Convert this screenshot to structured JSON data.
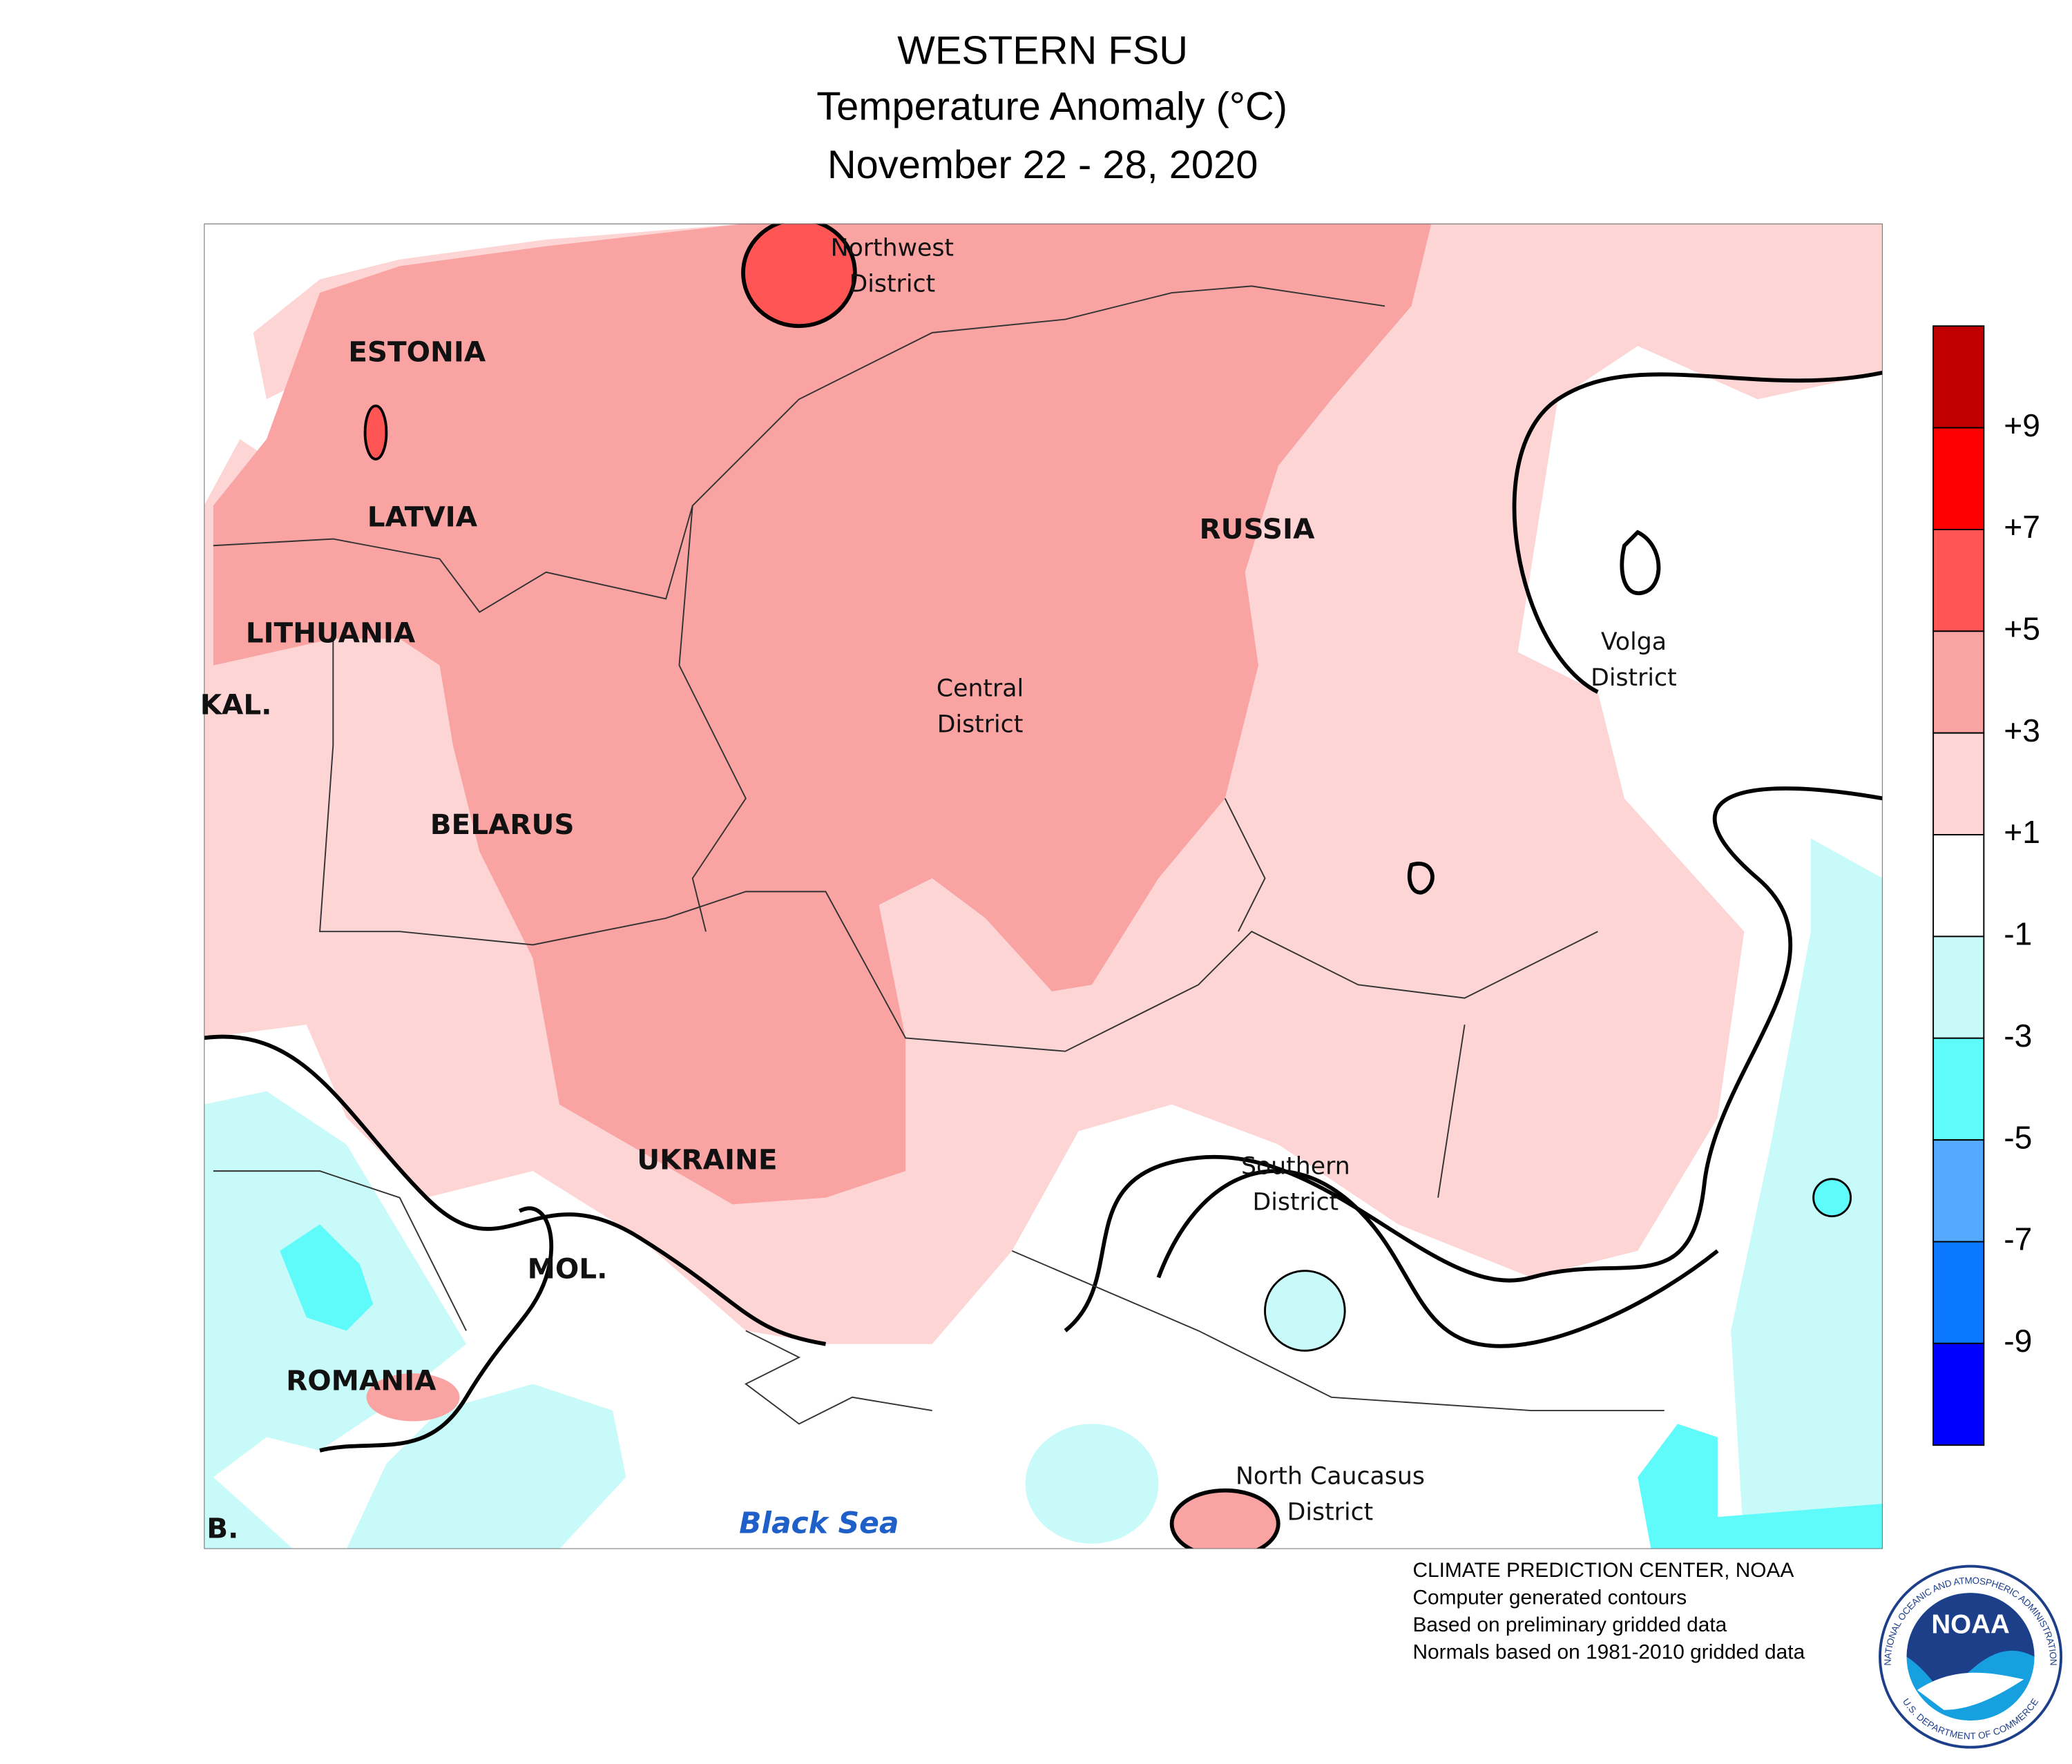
{
  "header": {
    "title": "WESTERN FSU",
    "subtitle": "Temperature Anomaly (°C)",
    "date": "November 22 - 28, 2020"
  },
  "map": {
    "labels": [
      [
        "ESTONIA"
      ],
      [
        "LATVIA"
      ],
      [
        "LITHUANIA"
      ],
      [
        "KAL."
      ],
      [
        "BELARUS"
      ],
      [
        "UKRAINE"
      ],
      [
        "MOL."
      ],
      [
        "ROMANIA"
      ],
      [
        "B."
      ],
      [
        "RUSSIA"
      ],
      [
        "Northwest",
        "District"
      ],
      [
        "Central",
        "District"
      ],
      [
        "Volga",
        "District"
      ],
      [
        "Southern",
        "District"
      ],
      [
        "North Caucasus",
        "District"
      ]
    ],
    "sea_label": "Black Sea"
  },
  "legend": {
    "colors": [
      "#c00000",
      "#ff0000",
      "#ff5555",
      "#f9a3a3",
      "#fdd5d5",
      "#ffffff",
      "#c8fafa",
      "#5ffafa",
      "#55aaff",
      "#0a78ff",
      "#0000ff"
    ],
    "labels": [
      "+9",
      "+7",
      "+5",
      "+3",
      "+1",
      "-1",
      "-3",
      "-5",
      "-7",
      "-9"
    ]
  },
  "footer": {
    "lines": [
      "CLIMATE PREDICTION CENTER, NOAA",
      "Computer generated contours",
      "Based on preliminary gridded data",
      "Normals based on 1981-2010 gridded data"
    ]
  },
  "logo": {
    "text": "NOAA",
    "ring_top": "NATIONAL OCEANIC AND ATMOSPHERIC ADMINISTRATION",
    "ring_bottom": "U.S. DEPARTMENT OF COMMERCE"
  }
}
